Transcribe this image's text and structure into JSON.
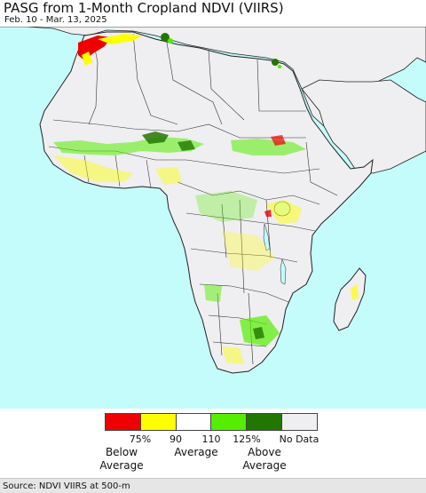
{
  "title": "PASG from 1-Month Cropland NDVI (VIIRS)",
  "date_range": "Feb. 10 - Mar. 13, 2025",
  "colors": {
    "ocean": "#c4fcfc",
    "land": "#efeef0",
    "border": "#222222"
  },
  "legend": {
    "swatches": [
      {
        "color": "#ee0000"
      },
      {
        "color": "#ffff00"
      },
      {
        "color": "#ffffff"
      },
      {
        "color": "#55ee00"
      },
      {
        "color": "#227700"
      },
      {
        "color": "#efeef0"
      }
    ],
    "ticks": [
      "75%",
      "90",
      "110",
      "125%",
      "No Data"
    ],
    "categories": {
      "below_line1": "Below",
      "below_line2": "Average",
      "average": "Average",
      "above_line1": "Above",
      "above_line2": "Average"
    }
  },
  "source": "Source: NDVI VIIRS at 500-m"
}
